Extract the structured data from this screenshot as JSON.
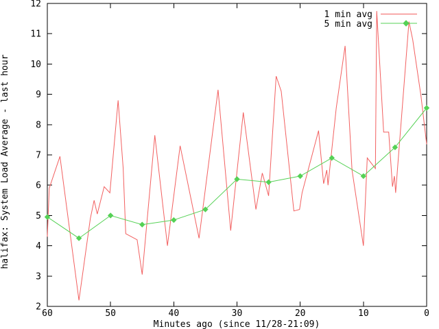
{
  "chart_data": {
    "type": "line",
    "title": "",
    "ylabel": "halifax: System Load Average - last hour",
    "xlabel": "Minutes ago (since 11/28-21:09)",
    "x_ticks": [
      60,
      50,
      40,
      30,
      20,
      10,
      0
    ],
    "y_ticks": [
      2,
      3,
      4,
      5,
      6,
      7,
      8,
      9,
      10,
      11,
      12
    ],
    "xlim": [
      60,
      0
    ],
    "ylim": [
      2,
      12
    ],
    "grid": false,
    "legend_position": "top-right-inside",
    "series": [
      {
        "name": "1 min avg",
        "color": "#f25f5f",
        "marker": "none",
        "points": [
          [
            60,
            4.3
          ],
          [
            59.7,
            5.9
          ],
          [
            58,
            6.95
          ],
          [
            55,
            2.2
          ],
          [
            53.2,
            4.9
          ],
          [
            52.6,
            5.5
          ],
          [
            52.1,
            5.05
          ],
          [
            51,
            5.95
          ],
          [
            50.1,
            5.75
          ],
          [
            48.8,
            8.8
          ],
          [
            48,
            6.55
          ],
          [
            47.6,
            4.4
          ],
          [
            45.8,
            4.2
          ],
          [
            45,
            3.05
          ],
          [
            43,
            7.65
          ],
          [
            41,
            4.0
          ],
          [
            39,
            7.3
          ],
          [
            36,
            4.25
          ],
          [
            33,
            9.15
          ],
          [
            31,
            4.5
          ],
          [
            29,
            8.4
          ],
          [
            27,
            5.2
          ],
          [
            26,
            6.4
          ],
          [
            25,
            5.65
          ],
          [
            23.8,
            9.6
          ],
          [
            23,
            9.1
          ],
          [
            21,
            5.15
          ],
          [
            20.1,
            5.2
          ],
          [
            19.7,
            5.75
          ],
          [
            17.1,
            7.8
          ],
          [
            16.3,
            6.05
          ],
          [
            15.8,
            6.5
          ],
          [
            15.6,
            6.0
          ],
          [
            14.3,
            8.55
          ],
          [
            12.9,
            10.6
          ],
          [
            11.8,
            6.5
          ],
          [
            10,
            4.0
          ],
          [
            9.4,
            6.9
          ],
          [
            8.1,
            6.55
          ],
          [
            7.9,
            11.75
          ],
          [
            6.8,
            7.75
          ],
          [
            6.0,
            7.75
          ],
          [
            5.4,
            5.95
          ],
          [
            5.1,
            6.3
          ],
          [
            4.9,
            5.75
          ],
          [
            2.8,
            11.4
          ],
          [
            2.2,
            10.8
          ],
          [
            0.9,
            8.95
          ],
          [
            0,
            7.35
          ]
        ]
      },
      {
        "name": "5 min avg",
        "color": "#55d155",
        "marker": "diamond",
        "points": [
          [
            60,
            4.95
          ],
          [
            55,
            4.25
          ],
          [
            50,
            5.0
          ],
          [
            45,
            4.7
          ],
          [
            40,
            4.85
          ],
          [
            35,
            5.2
          ],
          [
            30,
            6.2
          ],
          [
            25,
            6.1
          ],
          [
            20,
            6.3
          ],
          [
            15,
            6.9
          ],
          [
            10,
            6.3
          ],
          [
            5,
            7.25
          ],
          [
            0,
            8.55
          ]
        ]
      }
    ]
  },
  "colors": {
    "background": "#ffffff",
    "axis": "#000000",
    "series_1min": "#f25f5f",
    "series_5min": "#55d155"
  }
}
